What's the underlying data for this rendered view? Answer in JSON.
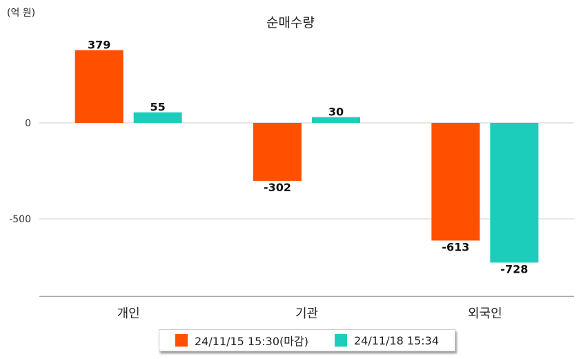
{
  "chart_data": {
    "type": "bar",
    "title": "순매수량",
    "unit_label": "(억 원)",
    "categories": [
      "개인",
      "기관",
      "외국인"
    ],
    "series": [
      {
        "name": "24/11/15 15:30(마감)",
        "values": [
          379,
          -302,
          -613
        ],
        "color": "#ff5000"
      },
      {
        "name": "24/11/18 15:34",
        "values": [
          55,
          30,
          -728
        ],
        "color": "#1dcdbc"
      }
    ],
    "ylim": [
      -900,
      420
    ],
    "yticks": [
      0,
      -500
    ],
    "grid": true,
    "legend_position": "bottom"
  }
}
